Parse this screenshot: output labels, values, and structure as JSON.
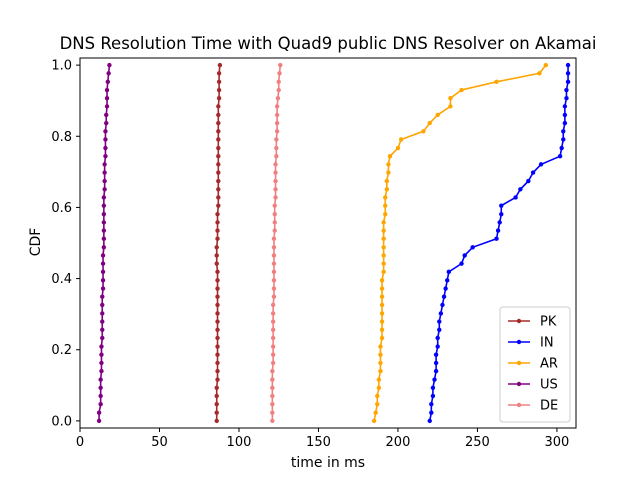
{
  "chart_data": {
    "type": "line",
    "title": "DNS Resolution Time with Quad9 public DNS Resolver on Akamai",
    "xlabel": "time in ms",
    "ylabel": "CDF",
    "xlim": [
      0,
      312
    ],
    "ylim": [
      -0.02,
      1.02
    ],
    "xticks": [
      0,
      50,
      100,
      150,
      200,
      250,
      300
    ],
    "yticks": [
      0.0,
      0.2,
      0.4,
      0.6,
      0.8,
      1.0
    ],
    "ytick_labels": [
      "0.0",
      "0.2",
      "0.4",
      "0.6",
      "0.8",
      "1.0"
    ],
    "grid": false,
    "legend_position": "lower-right",
    "series": [
      {
        "name": "PK",
        "color": "#a52a2a",
        "x": [
          86,
          86,
          86,
          86,
          86,
          86.5,
          86.5,
          86.5,
          86.5,
          86.5,
          86.5,
          86.5,
          86.5,
          86.5,
          86.5,
          86.5,
          86.5,
          86.5,
          86.5,
          86,
          86,
          86,
          86.5,
          86.5,
          86.5,
          86.5,
          87,
          87,
          87,
          87,
          87,
          87,
          87,
          87,
          87,
          87,
          87,
          87,
          87,
          87.5,
          87.5,
          87.5,
          87.5,
          88
        ],
        "y": [
          0.0,
          0.023,
          0.047,
          0.07,
          0.093,
          0.116,
          0.14,
          0.163,
          0.186,
          0.209,
          0.233,
          0.256,
          0.279,
          0.302,
          0.326,
          0.349,
          0.372,
          0.395,
          0.419,
          0.442,
          0.465,
          0.488,
          0.512,
          0.535,
          0.558,
          0.581,
          0.605,
          0.628,
          0.651,
          0.674,
          0.698,
          0.721,
          0.744,
          0.767,
          0.791,
          0.814,
          0.837,
          0.86,
          0.884,
          0.907,
          0.93,
          0.953,
          0.977,
          1.0
        ]
      },
      {
        "name": "IN",
        "color": "#0000ff",
        "x": [
          220,
          221,
          221,
          222,
          222,
          223,
          224,
          224,
          224,
          225,
          225,
          226,
          226,
          227,
          228,
          229,
          230,
          231,
          232,
          240,
          242,
          247,
          262,
          263,
          264,
          265,
          265,
          274,
          277,
          282,
          285,
          290,
          302,
          303,
          304,
          304,
          305,
          305,
          305,
          306,
          306,
          307,
          307,
          307
        ],
        "y": [
          0.0,
          0.023,
          0.047,
          0.07,
          0.093,
          0.116,
          0.14,
          0.163,
          0.186,
          0.209,
          0.233,
          0.256,
          0.279,
          0.302,
          0.326,
          0.349,
          0.372,
          0.395,
          0.419,
          0.442,
          0.465,
          0.488,
          0.512,
          0.535,
          0.558,
          0.581,
          0.605,
          0.628,
          0.651,
          0.674,
          0.698,
          0.721,
          0.744,
          0.767,
          0.791,
          0.814,
          0.837,
          0.86,
          0.884,
          0.907,
          0.93,
          0.953,
          0.977,
          1.0
        ]
      },
      {
        "name": "AR",
        "color": "#ffa500",
        "x": [
          185,
          186,
          187,
          187,
          188,
          188,
          189,
          189,
          189,
          189,
          190,
          190,
          190,
          190,
          190,
          190,
          190,
          190,
          191,
          191,
          191,
          191,
          191,
          191,
          191,
          192,
          192,
          192,
          193,
          193,
          194,
          194,
          195,
          200,
          202,
          216,
          220,
          225,
          233,
          233,
          240,
          262,
          289,
          293
        ],
        "y": [
          0.0,
          0.023,
          0.047,
          0.07,
          0.093,
          0.116,
          0.14,
          0.163,
          0.186,
          0.209,
          0.233,
          0.256,
          0.279,
          0.302,
          0.326,
          0.349,
          0.372,
          0.395,
          0.419,
          0.442,
          0.465,
          0.488,
          0.512,
          0.535,
          0.558,
          0.581,
          0.605,
          0.628,
          0.651,
          0.674,
          0.698,
          0.721,
          0.744,
          0.767,
          0.791,
          0.814,
          0.837,
          0.86,
          0.884,
          0.907,
          0.93,
          0.953,
          0.977,
          1.0
        ]
      },
      {
        "name": "US",
        "color": "#800080",
        "x": [
          12,
          12,
          13,
          13,
          13,
          13,
          13.5,
          13.5,
          13.5,
          13.5,
          14,
          14,
          14,
          14,
          14,
          14,
          14.5,
          14.5,
          14.5,
          14.5,
          14.5,
          15,
          15,
          15,
          15,
          15,
          15,
          15,
          15.5,
          15.5,
          15.5,
          15.5,
          16,
          16,
          16,
          16,
          16.5,
          16.5,
          17,
          17,
          17,
          17.5,
          18,
          18.5
        ],
        "y": [
          0.0,
          0.023,
          0.047,
          0.07,
          0.093,
          0.116,
          0.14,
          0.163,
          0.186,
          0.209,
          0.233,
          0.256,
          0.279,
          0.302,
          0.326,
          0.349,
          0.372,
          0.395,
          0.419,
          0.442,
          0.465,
          0.488,
          0.512,
          0.535,
          0.558,
          0.581,
          0.605,
          0.628,
          0.651,
          0.674,
          0.698,
          0.721,
          0.744,
          0.767,
          0.791,
          0.814,
          0.837,
          0.86,
          0.884,
          0.907,
          0.93,
          0.953,
          0.977,
          1.0
        ]
      },
      {
        "name": "DE",
        "color": "#f08080",
        "x": [
          121,
          121,
          121,
          121,
          121,
          121,
          121,
          121.5,
          121.5,
          121.5,
          121.5,
          121.5,
          121.5,
          121.5,
          121.5,
          122,
          122,
          122,
          122,
          122,
          122,
          122,
          122,
          122.5,
          122.5,
          122.5,
          122.5,
          123,
          123,
          123,
          123,
          123,
          123.5,
          123.5,
          123.5,
          124,
          124,
          124,
          124,
          124.5,
          125,
          125,
          125.5,
          126
        ],
        "y": [
          0.0,
          0.023,
          0.047,
          0.07,
          0.093,
          0.116,
          0.14,
          0.163,
          0.186,
          0.209,
          0.233,
          0.256,
          0.279,
          0.302,
          0.326,
          0.349,
          0.372,
          0.395,
          0.419,
          0.442,
          0.465,
          0.488,
          0.512,
          0.535,
          0.558,
          0.581,
          0.605,
          0.628,
          0.651,
          0.674,
          0.698,
          0.721,
          0.744,
          0.767,
          0.791,
          0.814,
          0.837,
          0.86,
          0.884,
          0.907,
          0.93,
          0.953,
          0.977,
          1.0
        ]
      }
    ]
  }
}
